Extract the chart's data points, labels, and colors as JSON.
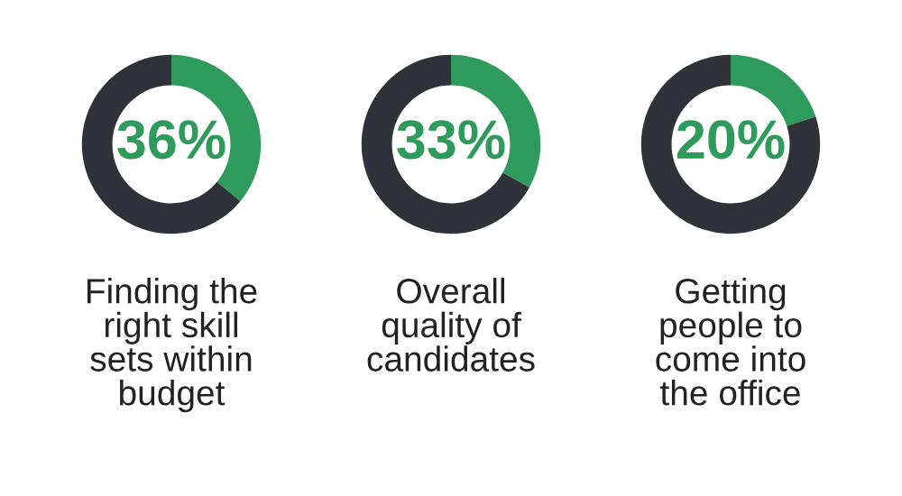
{
  "chart_data": [
    {
      "type": "donut",
      "title": "Finding the\nright skill\nsets within\nbudget",
      "categories": [
        null,
        null
      ],
      "values": [
        36,
        64
      ],
      "colors": [
        "#2e9a5c",
        "#2f3339"
      ],
      "value_labels": [
        "36%",
        null
      ]
    },
    {
      "type": "donut",
      "title": "Overall\nquality of\ncandidates",
      "categories": [
        null,
        null
      ],
      "values": [
        33,
        67
      ],
      "colors": [
        "#2e9a5c",
        "#2f3339"
      ],
      "value_labels": [
        "33%",
        null
      ]
    },
    {
      "type": "donut",
      "title": "Getting\npeople to\ncome into\nthe office",
      "categories": [
        null,
        null
      ],
      "values": [
        20,
        80
      ],
      "colors": [
        "#2e9a5c",
        "#2f3339"
      ],
      "value_labels": [
        "20%",
        null
      ]
    }
  ]
}
